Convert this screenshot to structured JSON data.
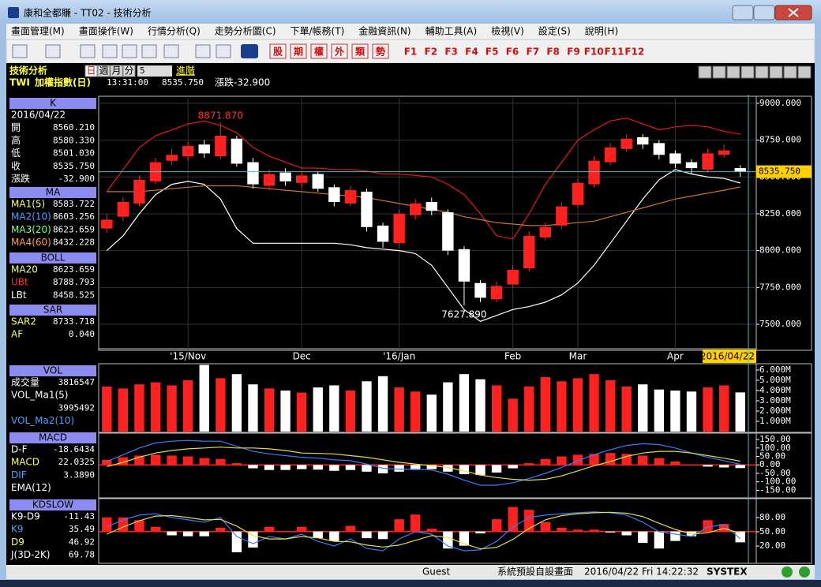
{
  "window": {
    "title": "康和全都賺 - TT02 - 技術分析"
  },
  "menu": [
    "畫面管理(M)",
    "畫面操作(W)",
    "行情分析(Q)",
    "走勢分析圖(C)",
    "下單/帳務(T)",
    "金融資訊(N)",
    "輔助工具(A)",
    "檢視(V)",
    "設定(S)",
    "說明(H)"
  ],
  "toolbar": {
    "buttons": [
      "股",
      "期",
      "權",
      "外",
      "類",
      "勢"
    ],
    "function_keys": [
      "F1",
      "F2",
      "F3",
      "F4",
      "F5",
      "F6",
      "F7",
      "F8",
      "F9",
      "F10",
      "F11",
      "F12"
    ]
  },
  "chart_header": {
    "title": "技術分析",
    "periods": [
      "日",
      "週",
      "月",
      "分"
    ],
    "interval": "5",
    "advanced": "進階",
    "symbol": "TWI",
    "name": "加權指數(日)",
    "time": "13:31:00",
    "price": "8535.750",
    "change": "漲跌-32.900"
  },
  "sidebar": [
    {
      "header": "K",
      "rows": [
        {
          "label": "2016/04/22",
          "color": "#ffffff"
        },
        {
          "label": "開",
          "value": "8560.210",
          "color": "#ffffff"
        },
        {
          "label": "高",
          "value": "8580.330",
          "color": "#ffffff"
        },
        {
          "label": "低",
          "value": "8501.030",
          "color": "#ffffff"
        },
        {
          "label": "收",
          "value": "8535.750",
          "color": "#ffffff"
        },
        {
          "label": "漲跌",
          "value": "-32.900",
          "color": "#ffffff"
        }
      ]
    },
    {
      "header": "MA",
      "rows": [
        {
          "label": "MA1(5)",
          "value": "8583.722",
          "color": "#ffff40"
        },
        {
          "label": "MA2(10)",
          "value": "8603.256",
          "color": "#4aa0ff"
        },
        {
          "label": "MA3(20)",
          "value": "8623.659",
          "color": "#80ff80"
        },
        {
          "label": "MA4(60)",
          "value": "8432.228",
          "color": "#ffa040"
        }
      ]
    },
    {
      "header": "BOLL",
      "rows": [
        {
          "label": "MA20",
          "value": "8623.659",
          "color": "#ffff40"
        },
        {
          "label": "UBt",
          "value": "8788.793",
          "color": "#ff3030"
        },
        {
          "label": "LBt",
          "value": "8458.525",
          "color": "#ffffff"
        }
      ]
    },
    {
      "header": "SAR",
      "rows": [
        {
          "label": "SAR2",
          "value": "8733.718",
          "color": "#ffff40"
        },
        {
          "label": "AF",
          "value": "0.040",
          "color": "#ffff40"
        }
      ]
    },
    {
      "header": "VOL",
      "rows": [
        {
          "label": "成交量",
          "value": "3816547",
          "color": "#ffffff"
        },
        {
          "label": "VOL_Ma1(5)",
          "color": "#ffffff"
        },
        {
          "value": "3995492",
          "color": "#ffffff"
        },
        {
          "label": "VOL_Ma2(10)",
          "color": "#4aa0ff"
        }
      ]
    },
    {
      "header": "MACD",
      "rows": [
        {
          "label": "D-F",
          "value": "-18.6434",
          "color": "#ffffff"
        },
        {
          "label": "MACD",
          "value": "22.0325",
          "color": "#ffff40"
        },
        {
          "label": "DIF",
          "value": "3.3890",
          "color": "#4aa0ff"
        },
        {
          "label": "EMA(12)",
          "color": "#ffffff"
        }
      ]
    },
    {
      "header": "KDSLOW",
      "rows": [
        {
          "label": "K9-D9",
          "value": "-11.43",
          "color": "#ffffff"
        },
        {
          "label": "K9",
          "value": "35.49",
          "color": "#4aa0ff"
        },
        {
          "label": "D9",
          "value": "46.92",
          "color": "#ffff40"
        },
        {
          "label": "J(3D-2K)",
          "value": "69.78",
          "color": "#ffffff"
        }
      ]
    }
  ],
  "chart_data": [
    {
      "type": "candlestick",
      "up_color": "#ff2020",
      "down_color": "#ffffff",
      "categories": [
        null,
        null,
        null,
        null,
        null,
        "'15/Nov",
        null,
        null,
        null,
        null,
        null,
        null,
        "Dec",
        null,
        null,
        null,
        null,
        null,
        "'16/Jan",
        null,
        null,
        null,
        null,
        null,
        null,
        "Feb",
        null,
        null,
        null,
        "Mar",
        null,
        null,
        null,
        null,
        null,
        "Apr",
        null,
        null,
        null,
        "2016/04/22"
      ],
      "open": [
        8150,
        8230,
        8320,
        8470,
        8610,
        8640,
        8720,
        8640,
        8760,
        8600,
        8440,
        8530,
        8460,
        8520,
        8430,
        8320,
        8400,
        8170,
        8050,
        8240,
        8330,
        8260,
        8010,
        7780,
        7670,
        7770,
        7880,
        8090,
        8170,
        8310,
        8450,
        8600,
        8690,
        8770,
        8730,
        8660,
        8600,
        8550,
        8650,
        8560.21
      ],
      "high": [
        8250,
        8360,
        8510,
        8630,
        8690,
        8740,
        8750,
        8871.87,
        8780,
        8630,
        8550,
        8560,
        8540,
        8540,
        8450,
        8440,
        8420,
        8190,
        8280,
        8350,
        8360,
        8280,
        8030,
        7800,
        7790,
        7900,
        8130,
        8190,
        8330,
        8490,
        8640,
        8730,
        8790,
        8790,
        8750,
        8680,
        8620,
        8690,
        8720,
        8580.33
      ],
      "low": [
        8120,
        8200,
        8300,
        8450,
        8580,
        8610,
        8630,
        8620,
        8570,
        8420,
        8410,
        8440,
        8430,
        8400,
        8300,
        8300,
        8130,
        8020,
        8020,
        8210,
        8240,
        7970,
        7627.89,
        7650,
        7650,
        7750,
        7860,
        8070,
        8150,
        8290,
        8430,
        8580,
        8670,
        8690,
        8620,
        8560,
        8520,
        8530,
        8630,
        8501.03
      ],
      "close": [
        8210,
        8330,
        8480,
        8600,
        8650,
        8710,
        8660,
        8780,
        8590,
        8450,
        8520,
        8470,
        8510,
        8420,
        8330,
        8410,
        8160,
        8060,
        8250,
        8320,
        8270,
        8000,
        7790,
        7680,
        7760,
        7870,
        8100,
        8160,
        8300,
        8460,
        8610,
        8700,
        8760,
        8720,
        8650,
        8590,
        8560,
        8660,
        8680,
        8535.75
      ],
      "lines": [
        {
          "color": "#e8141e",
          "values": [
            8400,
            8550,
            8700,
            8780,
            8820,
            8860,
            8880,
            8850,
            8800,
            8700,
            8640,
            8600,
            8560,
            8560,
            8550,
            8550,
            8540,
            8520,
            8520,
            8510,
            8500,
            8450,
            8380,
            8250,
            8100,
            8080,
            8250,
            8450,
            8600,
            8750,
            8820,
            8880,
            8900,
            8860,
            8820,
            8840,
            8850,
            8840,
            8810,
            8788.793
          ]
        },
        {
          "color": "#ffffff",
          "values": [
            8000,
            8100,
            8250,
            8380,
            8450,
            8470,
            8450,
            8350,
            8150,
            8050,
            8050,
            8050,
            8050,
            8050,
            8050,
            8040,
            8020,
            8010,
            8000,
            7980,
            7900,
            7750,
            7600,
            7520,
            7560,
            7600,
            7620,
            7650,
            7700,
            7780,
            7900,
            8050,
            8200,
            8350,
            8480,
            8550,
            8520,
            8500,
            8490,
            8458.525
          ]
        },
        {
          "color": "#c87830",
          "values": [
            8400,
            8400,
            8400,
            8410,
            8420,
            8430,
            8440,
            8440,
            8440,
            8430,
            8420,
            8410,
            8400,
            8390,
            8380,
            8370,
            8360,
            8340,
            8320,
            8300,
            8280,
            8260,
            8230,
            8210,
            8190,
            8180,
            8170,
            8170,
            8180,
            8190,
            8200,
            8230,
            8260,
            8290,
            8320,
            8350,
            8370,
            8390,
            8410,
            8432.228
          ]
        }
      ],
      "high_label": "8871.870",
      "low_label": "7627.890",
      "last_label": "8535.750",
      "ylim": [
        7334,
        9037
      ],
      "yticks": [
        {
          "value": 9000,
          "label": "9000.000"
        },
        {
          "value": 8750,
          "label": "8750.000"
        },
        {
          "value": 8500,
          "label": "8500.000"
        },
        {
          "value": 8250,
          "label": "8250.000"
        },
        {
          "value": 8000,
          "label": "8000.000"
        },
        {
          "value": 7750,
          "label": "7750.000"
        },
        {
          "value": 7500,
          "label": "7500.000"
        }
      ],
      "grid": true
    },
    {
      "type": "bar",
      "values": [
        4400000,
        4200000,
        4600000,
        4800000,
        4500000,
        5000000,
        6500000,
        5200000,
        5600000,
        4600000,
        4200000,
        4000000,
        3800000,
        4300000,
        4500000,
        4000000,
        4900000,
        5400000,
        4300000,
        3900000,
        3600000,
        4800000,
        5600000,
        5100000,
        4500000,
        3200000,
        4400000,
        5300000,
        4900000,
        5200000,
        5600000,
        5000000,
        4400000,
        4600000,
        4100000,
        4000000,
        3900000,
        4300000,
        4500000,
        3816547
      ],
      "ylim": [
        0,
        6460000
      ],
      "yticks": [
        {
          "value": 6000000,
          "label": "6.000M"
        },
        {
          "value": 5000000,
          "label": "5.000M"
        },
        {
          "value": 4000000,
          "label": "4.000M"
        },
        {
          "value": 3000000,
          "label": "3.000M"
        },
        {
          "value": 2000000,
          "label": "2.000M"
        },
        {
          "value": 1000000,
          "label": "1.000M"
        }
      ]
    },
    {
      "type": "bar_line",
      "values": [
        30,
        45,
        55,
        60,
        55,
        50,
        40,
        35,
        10,
        -20,
        -30,
        -30,
        -25,
        -28,
        -35,
        -30,
        -40,
        -50,
        -40,
        -30,
        -25,
        -40,
        -55,
        -60,
        -45,
        -20,
        10,
        35,
        50,
        60,
        65,
        70,
        65,
        55,
        40,
        20,
        0,
        -10,
        -15,
        -18.6434
      ],
      "series": [
        {
          "color": "#3a7bff",
          "values": [
            20,
            60,
            100,
            130,
            140,
            145,
            140,
            140,
            110,
            80,
            65,
            55,
            45,
            40,
            30,
            25,
            5,
            -20,
            -25,
            -25,
            -30,
            -55,
            -90,
            -120,
            -120,
            -105,
            -80,
            -50,
            -15,
            25,
            60,
            90,
            115,
            125,
            120,
            100,
            70,
            45,
            25,
            3.389
          ]
        },
        {
          "color": "#e0e040",
          "values": [
            -10,
            15,
            45,
            70,
            85,
            95,
            100,
            105,
            100,
            100,
            95,
            85,
            70,
            68,
            65,
            55,
            45,
            30,
            15,
            5,
            -5,
            -15,
            -35,
            -60,
            -75,
            -85,
            -90,
            -85,
            -65,
            -35,
            -5,
            20,
            50,
            70,
            80,
            80,
            70,
            55,
            40,
            22.0325
          ]
        }
      ],
      "ylim": [
        -190,
        183
      ],
      "yticks": [
        {
          "value": 150,
          "label": "150.00"
        },
        {
          "value": 100,
          "label": "100.00"
        },
        {
          "value": 50,
          "label": "50.00"
        },
        {
          "value": 0,
          "label": "0.00"
        },
        {
          "value": -50,
          "label": "-50.00"
        },
        {
          "value": -100,
          "label": "-100.00"
        },
        {
          "value": -150,
          "label": "-150.00"
        }
      ]
    },
    {
      "type": "bar_line",
      "values": [
        15,
        15,
        12,
        5,
        -4,
        -5,
        -5,
        4,
        -22,
        -17,
        5,
        0,
        5,
        -7,
        -10,
        6,
        -7,
        -8,
        13,
        18,
        3,
        -18,
        -15,
        -2,
        13,
        26,
        23,
        10,
        4,
        2,
        2,
        -1,
        -4,
        -12,
        -18,
        -10,
        -5,
        12,
        8,
        -11.43
      ],
      "bars_axis": "y2",
      "y2lim": [
        -32,
        34
      ],
      "series": [
        {
          "color": "#3a7bff",
          "values": [
            60,
            75,
            85,
            88,
            80,
            75,
            70,
            80,
            40,
            25,
            40,
            35,
            45,
            30,
            20,
            35,
            15,
            10,
            35,
            50,
            45,
            20,
            10,
            12,
            30,
            60,
            80,
            85,
            88,
            90,
            92,
            90,
            85,
            70,
            50,
            45,
            40,
            60,
            65,
            35.49
          ]
        },
        {
          "color": "#e0e040",
          "values": [
            45,
            60,
            73,
            83,
            84,
            80,
            75,
            76,
            62,
            42,
            35,
            35,
            40,
            37,
            30,
            29,
            22,
            18,
            22,
            32,
            42,
            38,
            25,
            14,
            17,
            34,
            57,
            75,
            84,
            88,
            90,
            91,
            89,
            82,
            68,
            55,
            45,
            48,
            57,
            46.92
          ]
        }
      ],
      "ylim": [
        -13,
        118
      ],
      "yticks": [
        {
          "value": 80,
          "label": "80.00"
        },
        {
          "value": 50,
          "label": "50.00"
        },
        {
          "value": 20,
          "label": "20.00"
        }
      ]
    }
  ],
  "status_bar": {
    "user": "Guest",
    "layout": "系統預設自設畫面",
    "datetime": "2016/04/22 Fri 14:22:32",
    "brand": "SYSTEX"
  }
}
